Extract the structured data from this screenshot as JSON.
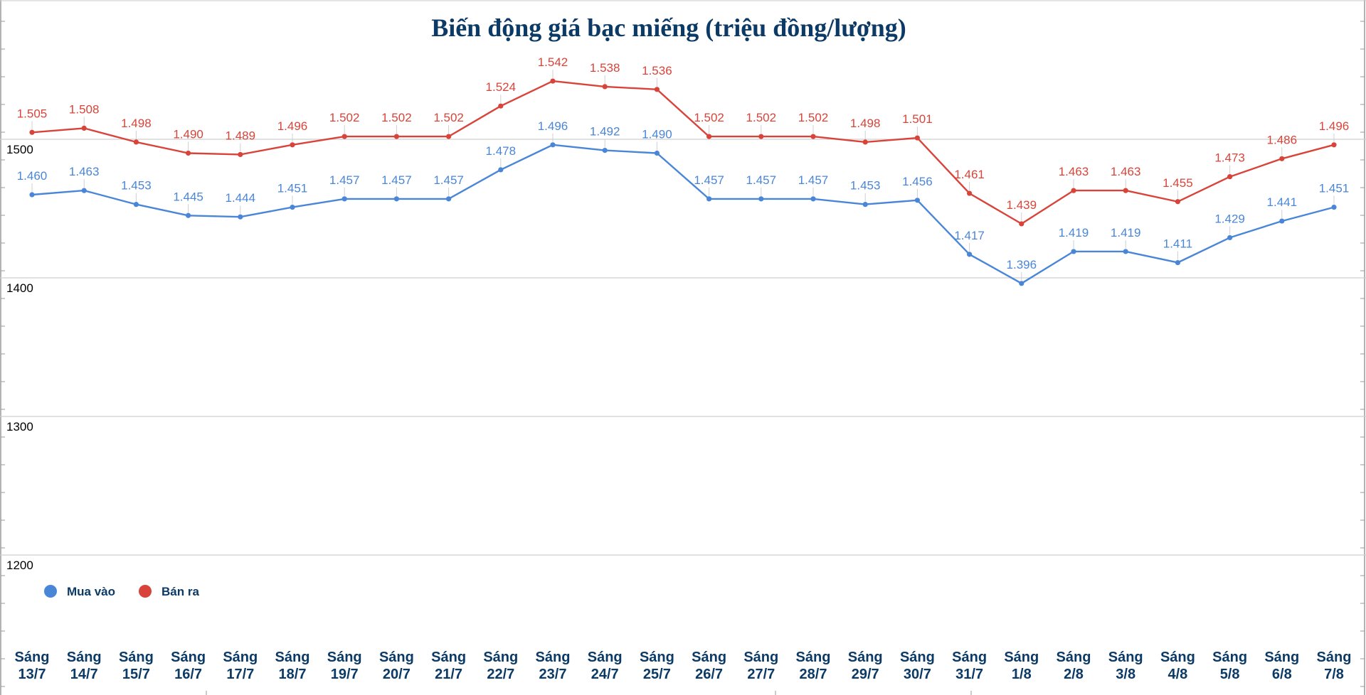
{
  "chart_data": {
    "type": "line",
    "title": "Biến động giá bạc miếng (triệu đồng/lượng)",
    "xlabel": "",
    "ylabel": "",
    "ylim": [
      1150,
      1580
    ],
    "y_ticks": [
      1200,
      1300,
      1400,
      1500
    ],
    "y_tick_labels": [
      "1200",
      "1300",
      "1400",
      "1500"
    ],
    "grid": true,
    "legend_position": "bottom-left",
    "categories": [
      [
        "Sáng",
        "13/7"
      ],
      [
        "Sáng",
        "14/7"
      ],
      [
        "Sáng",
        "15/7"
      ],
      [
        "Sáng",
        "16/7"
      ],
      [
        "Sáng",
        "17/7"
      ],
      [
        "Sáng",
        "18/7"
      ],
      [
        "Sáng",
        "19/7"
      ],
      [
        "Sáng",
        "20/7"
      ],
      [
        "Sáng",
        "21/7"
      ],
      [
        "Sáng",
        "22/7"
      ],
      [
        "Sáng",
        "23/7"
      ],
      [
        "Sáng",
        "24/7"
      ],
      [
        "Sáng",
        "25/7"
      ],
      [
        "Sáng",
        "26/7"
      ],
      [
        "Sáng",
        "27/7"
      ],
      [
        "Sáng",
        "28/7"
      ],
      [
        "Sáng",
        "29/7"
      ],
      [
        "Sáng",
        "30/7"
      ],
      [
        "Sáng",
        "31/7"
      ],
      [
        "Sáng",
        "1/8"
      ],
      [
        "Sáng",
        "2/8"
      ],
      [
        "Sáng",
        "3/8"
      ],
      [
        "Sáng",
        "4/8"
      ],
      [
        "Sáng",
        "5/8"
      ],
      [
        "Sáng",
        "6/8"
      ],
      [
        "Sáng",
        "7/8"
      ]
    ],
    "series": [
      {
        "name": "Mua vào",
        "color": "#4a86d8",
        "values": [
          1460,
          1463,
          1453,
          1445,
          1444,
          1451,
          1457,
          1457,
          1457,
          1478,
          1496,
          1492,
          1490,
          1457,
          1457,
          1457,
          1453,
          1456,
          1417,
          1396,
          1419,
          1419,
          1411,
          1429,
          1441,
          1451
        ],
        "labels": [
          "1.460",
          "1.463",
          "1.453",
          "1.445",
          "1.444",
          "1.451",
          "1.457",
          "1.457",
          "1.457",
          "1.478",
          "1.496",
          "1.492",
          "1.490",
          "1.457",
          "1.457",
          "1.457",
          "1.453",
          "1.456",
          "1.417",
          "1.396",
          "1.419",
          "1.419",
          "1.411",
          "1.429",
          "1.441",
          "1.451"
        ]
      },
      {
        "name": "Bán ra",
        "color": "#d9443a",
        "values": [
          1505,
          1508,
          1498,
          1490,
          1489,
          1496,
          1502,
          1502,
          1502,
          1524,
          1542,
          1538,
          1536,
          1502,
          1502,
          1502,
          1498,
          1501,
          1461,
          1439,
          1463,
          1463,
          1455,
          1473,
          1486,
          1496
        ],
        "labels": [
          "1.505",
          "1.508",
          "1.498",
          "1.490",
          "1.489",
          "1.496",
          "1.502",
          "1.502",
          "1.502",
          "1.524",
          "1.542",
          "1.538",
          "1.536",
          "1.502",
          "1.502",
          "1.502",
          "1.498",
          "1.501",
          "1.461",
          "1.439",
          "1.463",
          "1.463",
          "1.455",
          "1.473",
          "1.486",
          "1.496"
        ]
      }
    ],
    "legend": [
      {
        "name": "Mua vào",
        "color": "#4a86d8"
      },
      {
        "name": "Bán ra",
        "color": "#d9443a"
      }
    ]
  }
}
